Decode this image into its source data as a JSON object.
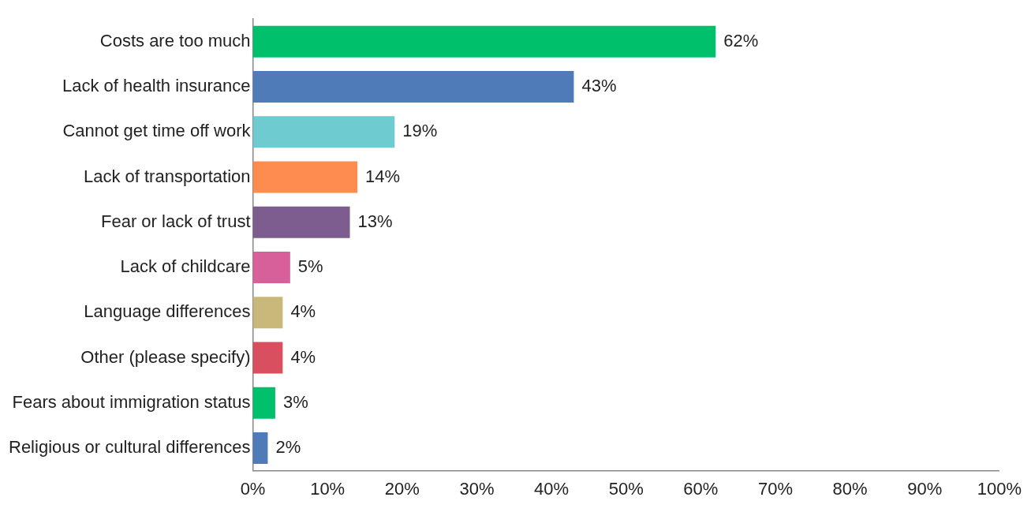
{
  "chart_data": {
    "type": "bar",
    "orientation": "horizontal",
    "categories": [
      "Costs are too much",
      "Lack of health insurance",
      "Cannot get time off work",
      "Lack of transportation",
      "Fear or lack of trust",
      "Lack of childcare",
      "Language differences",
      "Other (please specify)",
      "Fears about immigration status",
      "Religious or cultural differences"
    ],
    "values": [
      62,
      43,
      19,
      14,
      13,
      5,
      4,
      4,
      3,
      2
    ],
    "colors": [
      "#00c06b",
      "#4f7cb8",
      "#6ecbd0",
      "#ff8c4f",
      "#7d5d8f",
      "#d8609a",
      "#c8b87a",
      "#d94f5f",
      "#00c06b",
      "#4f7cb8"
    ],
    "value_labels": [
      "62%",
      "43%",
      "19%",
      "14%",
      "13%",
      "5%",
      "4%",
      "4%",
      "3%",
      "2%"
    ],
    "xlim": [
      0,
      100
    ],
    "xticks": [
      {
        "value": 0,
        "label": "0%"
      },
      {
        "value": 10,
        "label": "10%"
      },
      {
        "value": 20,
        "label": "20%"
      },
      {
        "value": 30,
        "label": "30%"
      },
      {
        "value": 40,
        "label": "40%"
      },
      {
        "value": 50,
        "label": "50%"
      },
      {
        "value": 60,
        "label": "60%"
      },
      {
        "value": 70,
        "label": "70%"
      },
      {
        "value": 80,
        "label": "80%"
      },
      {
        "value": 90,
        "label": "90%"
      },
      {
        "value": 100,
        "label": "100%"
      }
    ],
    "grid": false,
    "legend": false
  }
}
